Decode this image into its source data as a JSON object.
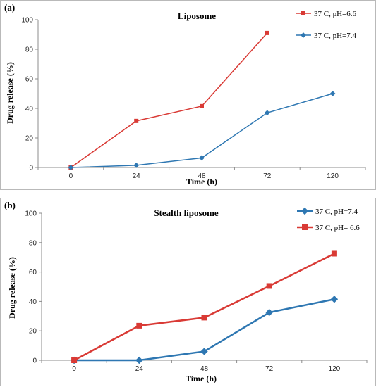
{
  "chart_data": [
    {
      "type": "line",
      "panel_label": "(a)",
      "title": "Liposome",
      "xlabel": "Time (h)",
      "ylabel": "Drug release (%)",
      "categories": [
        "0",
        "24",
        "48",
        "72",
        "120"
      ],
      "ylim": [
        0,
        100
      ],
      "yticks": [
        0,
        20,
        40,
        60,
        80,
        100
      ],
      "grid": false,
      "legend_position": "top-right",
      "series": [
        {
          "name": "37 C, pH=6.6",
          "marker": "square",
          "color": "#d93a35",
          "values": [
            0,
            31.5,
            41.5,
            91,
            null
          ]
        },
        {
          "name": "37 C, pH=7.4",
          "marker": "diamond",
          "color": "#2e77b2",
          "values": [
            0,
            1.5,
            6.5,
            37,
            50
          ]
        }
      ]
    },
    {
      "type": "line",
      "panel_label": "(b)",
      "title": "Stealth liposome",
      "xlabel": "Time (h)",
      "ylabel": "Drug release (%)",
      "categories": [
        "0",
        "24",
        "48",
        "72",
        "120"
      ],
      "ylim": [
        0,
        100
      ],
      "yticks": [
        0,
        20,
        40,
        60,
        80,
        100
      ],
      "grid": false,
      "legend_position": "top-right",
      "series": [
        {
          "name": "37 C, pH=7.4",
          "marker": "diamond",
          "color": "#2e77b2",
          "values": [
            0,
            0,
            6,
            32.5,
            41.5
          ]
        },
        {
          "name": "37 C, pH= 6.6",
          "marker": "square",
          "color": "#d93a35",
          "values": [
            0,
            23.5,
            29,
            50.5,
            72.5
          ]
        }
      ]
    }
  ]
}
